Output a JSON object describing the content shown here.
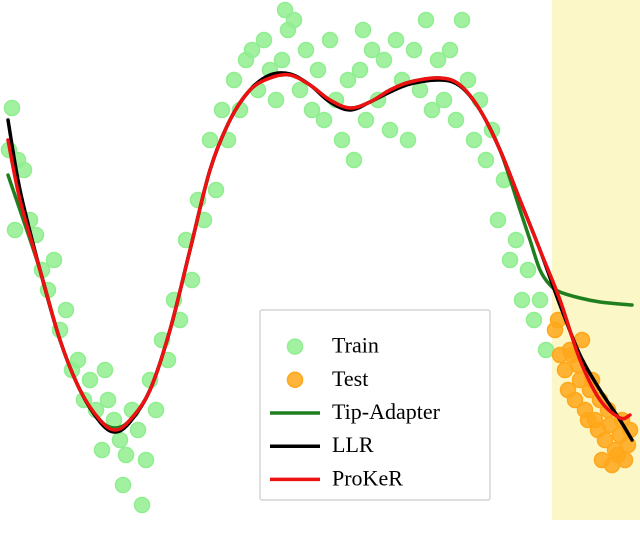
{
  "chart_data": {
    "type": "scatter-line",
    "xlim": [
      0,
      64
    ],
    "ylim": [
      0,
      52
    ],
    "test_region": {
      "xlim": [
        55.2,
        64
      ],
      "color": "#fbf7c6"
    },
    "legend": "lower center",
    "scatter": [
      {
        "name": "Train",
        "color": "#90ee90",
        "x": [
          1.2,
          1.8,
          2.4,
          3.0,
          3.6,
          4.2,
          4.8,
          5.4,
          6.0,
          6.6,
          7.2,
          7.8,
          8.4,
          9.0,
          9.6,
          10.2,
          10.8,
          11.4,
          12.0,
          12.6,
          13.2,
          13.8,
          14.2,
          14.6,
          15.0,
          15.6,
          16.2,
          16.8,
          17.4,
          18.0,
          18.6,
          19.2,
          19.8,
          20.4,
          21.0,
          21.6,
          22.2,
          22.8,
          23.4,
          24.0,
          24.6,
          25.2,
          25.8,
          26.4,
          27.0,
          27.6,
          28.2,
          28.8,
          29.4,
          30.0,
          30.6,
          31.2,
          31.8,
          32.4,
          33.0,
          33.6,
          34.2,
          34.8,
          35.4,
          36.0,
          36.6,
          37.2,
          37.8,
          38.4,
          39.0,
          39.6,
          40.2,
          40.8,
          41.4,
          42.0,
          42.6,
          43.2,
          43.8,
          44.4,
          45.0,
          45.6,
          46.2,
          46.8,
          47.4,
          48.0,
          48.6,
          49.2,
          49.8,
          50.4,
          51.0,
          51.6,
          52.2,
          52.8,
          53.4,
          54.0,
          54.6,
          0.9,
          1.5,
          12.3,
          10.5,
          28.5,
          36.3
        ],
        "values": [
          41.2,
          36,
          35,
          30,
          28.5,
          25,
          23,
          26,
          19,
          21,
          15,
          16,
          12,
          14,
          11,
          7,
          12,
          10,
          8,
          6.5,
          11,
          9,
          1.5,
          6,
          14,
          11,
          18,
          16,
          22,
          20,
          28,
          24,
          32,
          30,
          38,
          33,
          41,
          38,
          44,
          41,
          46,
          47,
          43,
          48,
          45,
          42,
          46,
          49,
          50,
          43,
          47,
          41,
          45,
          40,
          48,
          42,
          38,
          44,
          36,
          45,
          40,
          47,
          42,
          46,
          39,
          48,
          44,
          38,
          47,
          43,
          50,
          41,
          46,
          42,
          47,
          40,
          50,
          44,
          38,
          42,
          36,
          39,
          30,
          34,
          26,
          28,
          22,
          25,
          20,
          22,
          17,
          37,
          29,
          3.5,
          15,
          51,
          49
        ]
      },
      {
        "name": "Test",
        "color": "#ffa71a",
        "x": [
          55.5,
          56,
          56.5,
          57,
          57.5,
          58,
          58.5,
          59,
          59.5,
          60,
          60.5,
          61,
          61.5,
          62,
          62.5,
          63,
          55.8,
          56.8,
          57.8,
          58.8,
          59.8,
          60.8,
          61.8,
          62.8,
          58.2,
          59.2,
          60.2,
          61.2,
          62.2,
          57.2
        ],
        "values": [
          19,
          16.5,
          15,
          17,
          12,
          14,
          11,
          13,
          10,
          12,
          8,
          9.5,
          7,
          8.5,
          6,
          9,
          20,
          13,
          15.5,
          10,
          9,
          11,
          6.5,
          7.5,
          18,
          14,
          6,
          5.5,
          10,
          16.5
        ]
      }
    ],
    "series": [
      {
        "name": "Tip-Adapter",
        "color": "#1f7f1f",
        "x": [
          0.8,
          2,
          4,
          6,
          8,
          10,
          11.5,
          13,
          15,
          17,
          19,
          21,
          23,
          25,
          27,
          29,
          31,
          33,
          35,
          37,
          39,
          41,
          44,
          46,
          48,
          50,
          52,
          53,
          54,
          55,
          56,
          58,
          60,
          62,
          63.2
        ],
        "values": [
          34.5,
          31,
          25,
          18,
          13,
          10,
          9.2,
          10,
          13,
          19,
          27,
          35,
          40,
          43,
          44.2,
          44.5,
          43.5,
          42,
          41.2,
          41.8,
          43,
          43.8,
          44.2,
          43.5,
          41,
          37,
          31,
          28,
          25,
          23.5,
          22.8,
          22.2,
          21.8,
          21.6,
          21.5
        ]
      },
      {
        "name": "LLR",
        "color": "#000000",
        "x": [
          0.8,
          2,
          4,
          6,
          8,
          10,
          11.5,
          13,
          15,
          17,
          19,
          21,
          23,
          25,
          27,
          29,
          31,
          33,
          35,
          37,
          39,
          41,
          44,
          46,
          48,
          50,
          52,
          54,
          56,
          58,
          60,
          62,
          63.2
        ],
        "values": [
          40,
          33,
          25,
          18,
          13,
          9.8,
          8.8,
          9.8,
          13,
          19,
          27,
          35,
          40,
          43,
          44.5,
          44.6,
          43.5,
          41.8,
          41,
          41.8,
          42.8,
          43.6,
          44,
          43.4,
          41,
          37,
          32,
          27,
          21.5,
          16.5,
          13,
          10,
          8
        ]
      },
      {
        "name": "ProKeR",
        "color": "#ee1111",
        "x": [
          0.8,
          2,
          4,
          6,
          8,
          10,
          11.5,
          13,
          15,
          17,
          19,
          21,
          23,
          25,
          27,
          29,
          31,
          33,
          35,
          37,
          39,
          41,
          44,
          46,
          48,
          50,
          52,
          54,
          56,
          58,
          60,
          62,
          63
        ],
        "values": [
          38,
          32,
          25,
          18,
          13,
          10,
          9,
          10,
          13,
          19,
          27,
          35,
          40,
          43,
          44.2,
          44.5,
          43.5,
          42,
          41.2,
          41.8,
          43,
          43.8,
          44.2,
          43.5,
          41,
          37,
          32,
          27,
          22,
          16,
          12,
          10.2,
          10.5
        ]
      }
    ]
  }
}
